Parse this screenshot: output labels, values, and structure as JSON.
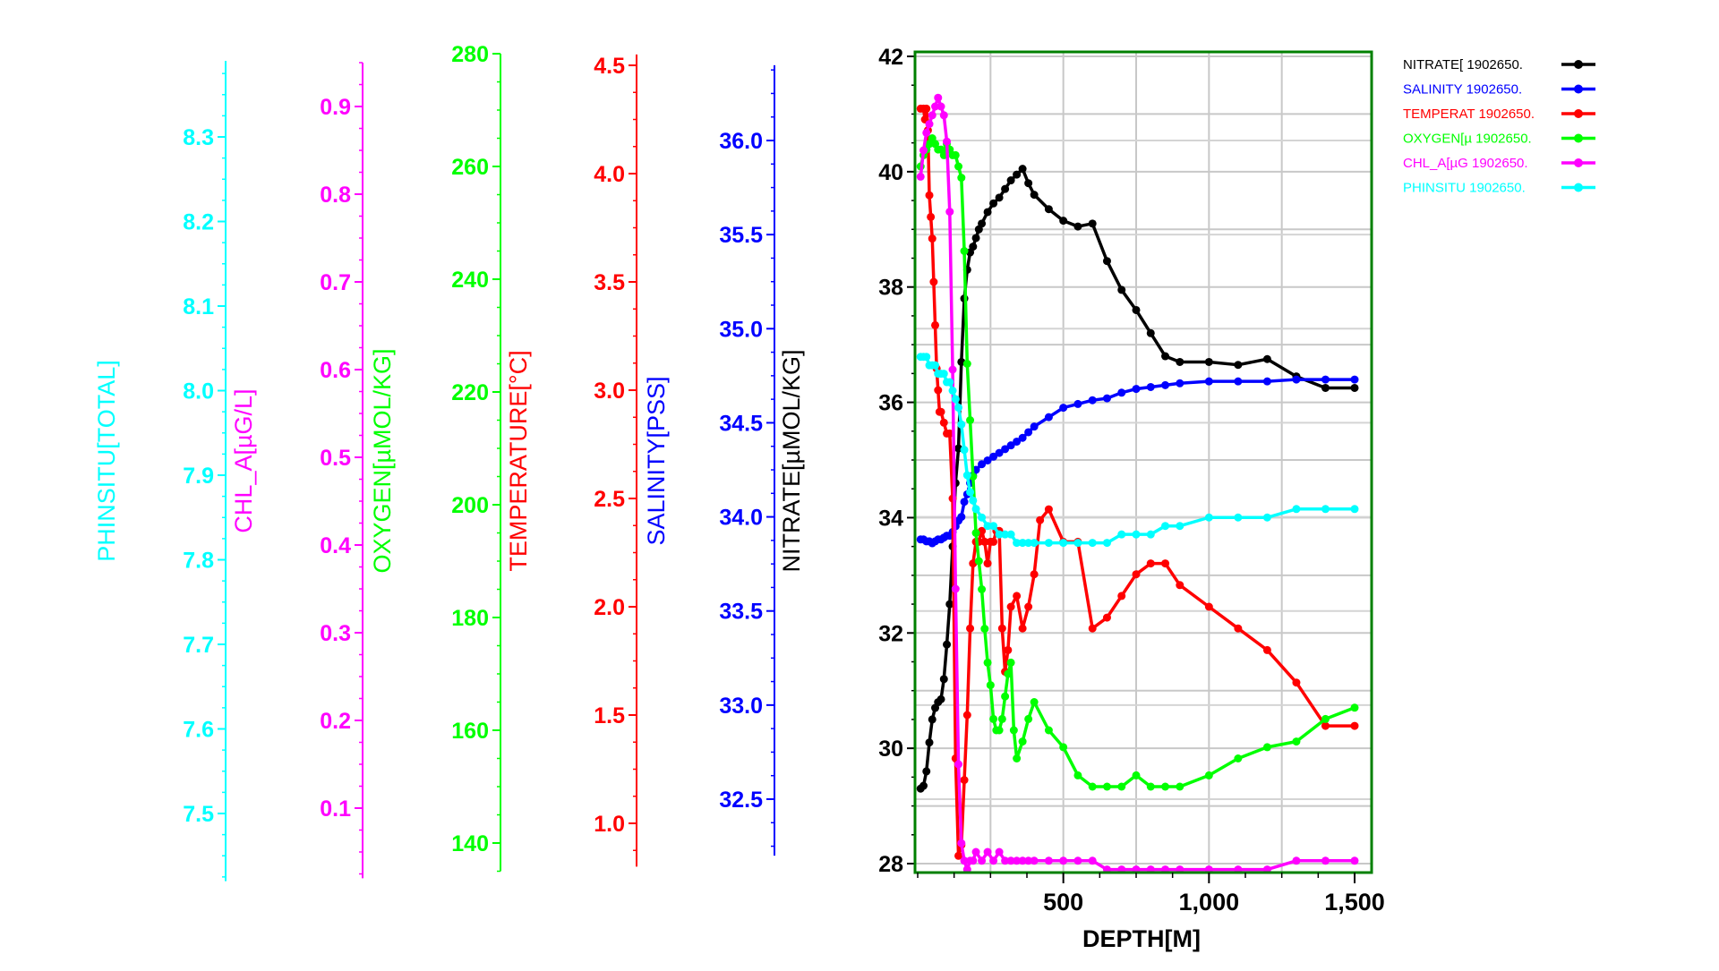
{
  "chart_data": {
    "type": "line",
    "xlabel": "DEPTH[M]",
    "xlim": [
      0,
      1500
    ],
    "x_ticks": [
      500,
      1000,
      1500
    ],
    "x_tick_labels": [
      "500",
      "1,000",
      "1,500"
    ],
    "grid": true,
    "legend_position": "top-right",
    "plot_border_color": "#008000",
    "axes": [
      {
        "key": "phinsitu",
        "label": "PHINSITU[TOTAL]",
        "color": "#00FFFF",
        "range": [
          7.42,
          8.39
        ],
        "ticks": [
          7.5,
          7.6,
          7.7,
          7.8,
          7.9,
          8.0,
          8.1,
          8.2,
          8.3
        ],
        "tick_labels": [
          "7.5",
          "7.6",
          "7.7",
          "7.8",
          "7.9",
          "8.0",
          "8.1",
          "8.2",
          "8.3"
        ]
      },
      {
        "key": "chl",
        "label": "CHL_A[µG/L]",
        "color": "#FF00FF",
        "range": [
          0.02,
          0.95
        ],
        "ticks": [
          0.1,
          0.2,
          0.3,
          0.4,
          0.5,
          0.6,
          0.7,
          0.8,
          0.9
        ],
        "tick_labels": [
          "0.1",
          "0.2",
          "0.3",
          "0.4",
          "0.5",
          "0.6",
          "0.7",
          "0.8",
          "0.9"
        ]
      },
      {
        "key": "oxygen",
        "label": "OXYGEN[µMOL/KG]",
        "color": "#00FF00",
        "range": [
          135,
          280
        ],
        "ticks": [
          140,
          160,
          180,
          200,
          220,
          240,
          260,
          280
        ],
        "tick_labels": [
          "140",
          "160",
          "180",
          "200",
          "220",
          "240",
          "260",
          "280"
        ]
      },
      {
        "key": "temperature",
        "label": "TEMPERATURE[°C]",
        "color": "#FF0000",
        "range": [
          0.8,
          4.55
        ],
        "ticks": [
          1.0,
          1.5,
          2.0,
          2.5,
          3.0,
          3.5,
          4.0,
          4.5
        ],
        "tick_labels": [
          "1.0",
          "1.5",
          "2.0",
          "2.5",
          "3.0",
          "3.5",
          "4.0",
          "4.5"
        ]
      },
      {
        "key": "salinity",
        "label": "SALINITY[PSS]",
        "color": "#0000FF",
        "range": [
          32.2,
          36.4
        ],
        "ticks": [
          32.5,
          33.0,
          33.5,
          34.0,
          34.5,
          35.0,
          35.5,
          36.0
        ],
        "tick_labels": [
          "32.5",
          "33.0",
          "33.5",
          "34.0",
          "34.5",
          "35.0",
          "35.5",
          "36.0"
        ]
      },
      {
        "key": "nitrate",
        "label": "NITRATE[µMOL/KG]",
        "color": "#000000",
        "range": [
          27.8,
          42.3
        ],
        "ticks": [
          28,
          30,
          32,
          34,
          36,
          38,
          40,
          42
        ],
        "tick_labels": [
          "28",
          "30",
          "32",
          "34",
          "36",
          "38",
          "40",
          "42"
        ]
      }
    ],
    "series": [
      {
        "name": "NITRATE[ 1902650.",
        "axis": "nitrate",
        "color": "#000000",
        "x": [
          10,
          20,
          30,
          40,
          50,
          60,
          70,
          80,
          90,
          100,
          110,
          120,
          130,
          140,
          150,
          160,
          170,
          180,
          190,
          200,
          210,
          220,
          240,
          260,
          280,
          300,
          320,
          340,
          360,
          380,
          400,
          450,
          500,
          550,
          600,
          650,
          700,
          750,
          800,
          850,
          900,
          1000,
          1100,
          1200,
          1300,
          1400,
          1500
        ],
        "y": [
          29.3,
          29.35,
          29.6,
          30.1,
          30.5,
          30.7,
          30.8,
          30.85,
          31.2,
          31.8,
          32.5,
          33.5,
          34.6,
          35.2,
          36.7,
          37.8,
          38.3,
          38.6,
          38.7,
          38.85,
          39.0,
          39.1,
          39.3,
          39.45,
          39.55,
          39.7,
          39.85,
          39.95,
          40.05,
          39.8,
          39.6,
          39.35,
          39.15,
          39.05,
          39.1,
          38.45,
          37.95,
          37.6,
          37.2,
          36.8,
          36.7,
          36.7,
          36.65,
          36.75,
          36.45,
          36.25,
          36.25
        ]
      },
      {
        "name": "SALINITY 1902650.",
        "axis": "salinity",
        "color": "#0000FF",
        "x": [
          10,
          20,
          30,
          40,
          50,
          60,
          70,
          80,
          90,
          100,
          110,
          120,
          130,
          140,
          150,
          160,
          170,
          180,
          190,
          200,
          220,
          240,
          260,
          280,
          300,
          320,
          340,
          360,
          380,
          400,
          450,
          500,
          550,
          600,
          650,
          700,
          750,
          800,
          850,
          900,
          1000,
          1100,
          1200,
          1300,
          1400,
          1500
        ],
        "y": [
          33.88,
          33.88,
          33.87,
          33.87,
          33.86,
          33.87,
          33.88,
          33.88,
          33.89,
          33.9,
          33.9,
          33.92,
          33.95,
          33.98,
          34.0,
          34.08,
          34.12,
          34.18,
          34.22,
          34.25,
          34.28,
          34.3,
          34.32,
          34.34,
          34.36,
          34.38,
          34.4,
          34.42,
          34.45,
          34.48,
          34.53,
          34.58,
          34.6,
          34.62,
          34.63,
          34.66,
          34.68,
          34.69,
          34.7,
          34.71,
          34.72,
          34.72,
          34.72,
          34.73,
          34.73,
          34.73
        ]
      },
      {
        "name": "TEMPERAT 1902650.",
        "axis": "temperature",
        "color": "#FF0000",
        "x": [
          10,
          20,
          25,
          30,
          35,
          40,
          45,
          50,
          55,
          60,
          65,
          70,
          75,
          80,
          90,
          100,
          110,
          120,
          130,
          140,
          150,
          160,
          170,
          180,
          190,
          200,
          210,
          220,
          230,
          240,
          250,
          260,
          270,
          280,
          290,
          300,
          310,
          320,
          340,
          360,
          380,
          400,
          420,
          450,
          500,
          550,
          600,
          650,
          700,
          750,
          800,
          850,
          900,
          1000,
          1100,
          1200,
          1300,
          1400,
          1500
        ],
        "y": [
          4.3,
          4.3,
          4.25,
          4.3,
          4.2,
          3.9,
          3.8,
          3.7,
          3.5,
          3.3,
          3.1,
          3.0,
          2.9,
          2.9,
          2.85,
          2.8,
          2.8,
          2.5,
          1.3,
          0.85,
          0.9,
          1.2,
          1.5,
          1.9,
          2.2,
          2.3,
          2.3,
          2.35,
          2.3,
          2.2,
          2.3,
          2.3,
          2.35,
          2.35,
          1.9,
          1.7,
          1.8,
          2.0,
          2.05,
          1.9,
          2.0,
          2.15,
          2.4,
          2.45,
          2.3,
          2.3,
          1.9,
          1.95,
          2.05,
          2.15,
          2.2,
          2.2,
          2.1,
          2.0,
          1.9,
          1.8,
          1.65,
          1.45,
          1.45
        ]
      },
      {
        "name": "OXYGEN[µ 1902650.",
        "axis": "oxygen",
        "color": "#00FF00",
        "x": [
          10,
          20,
          30,
          40,
          50,
          60,
          70,
          80,
          90,
          100,
          110,
          120,
          130,
          140,
          150,
          160,
          170,
          180,
          190,
          200,
          210,
          220,
          230,
          240,
          250,
          260,
          270,
          280,
          290,
          300,
          310,
          320,
          330,
          340,
          360,
          380,
          400,
          450,
          500,
          550,
          600,
          650,
          700,
          750,
          800,
          850,
          900,
          1000,
          1100,
          1200,
          1300,
          1400,
          1500
        ],
        "y": [
          260,
          262,
          263,
          264,
          265,
          264,
          263,
          263,
          262,
          264,
          263,
          262,
          262,
          260,
          258,
          245,
          225,
          215,
          205,
          195,
          190,
          185,
          178,
          172,
          168,
          162,
          160,
          160,
          162,
          166,
          170,
          172,
          160,
          155,
          158,
          162,
          165,
          160,
          157,
          152,
          150,
          150,
          150,
          152,
          150,
          150,
          150,
          152,
          155,
          157,
          158,
          162,
          164
        ]
      },
      {
        "name": "CHL_A[µG 1902650.",
        "axis": "chl",
        "color": "#FF00FF",
        "x": [
          10,
          20,
          30,
          40,
          50,
          60,
          70,
          80,
          90,
          100,
          110,
          120,
          130,
          140,
          150,
          160,
          170,
          180,
          190,
          200,
          220,
          240,
          260,
          280,
          300,
          320,
          340,
          360,
          380,
          400,
          450,
          500,
          550,
          600,
          650,
          700,
          750,
          800,
          850,
          900,
          1000,
          1100,
          1200,
          1300,
          1400,
          1500
        ],
        "y": [
          0.82,
          0.85,
          0.87,
          0.88,
          0.89,
          0.9,
          0.91,
          0.9,
          0.89,
          0.86,
          0.78,
          0.6,
          0.35,
          0.15,
          0.06,
          0.04,
          0.03,
          0.04,
          0.04,
          0.05,
          0.04,
          0.05,
          0.04,
          0.05,
          0.04,
          0.04,
          0.04,
          0.04,
          0.04,
          0.04,
          0.04,
          0.04,
          0.04,
          0.04,
          0.03,
          0.03,
          0.03,
          0.03,
          0.03,
          0.03,
          0.03,
          0.03,
          0.03,
          0.04,
          0.04,
          0.04
        ]
      },
      {
        "name": "PHINSITU 1902650.",
        "axis": "phinsitu",
        "color": "#00FFFF",
        "x": [
          10,
          20,
          30,
          40,
          50,
          60,
          70,
          80,
          90,
          100,
          110,
          120,
          130,
          140,
          150,
          160,
          170,
          180,
          190,
          200,
          220,
          240,
          260,
          280,
          300,
          320,
          340,
          360,
          380,
          400,
          450,
          500,
          550,
          600,
          650,
          700,
          750,
          800,
          850,
          900,
          1000,
          1100,
          1200,
          1300,
          1400,
          1500
        ],
        "y": [
          8.04,
          8.04,
          8.04,
          8.03,
          8.03,
          8.03,
          8.02,
          8.02,
          8.02,
          8.01,
          8.01,
          8.0,
          7.99,
          7.98,
          7.96,
          7.93,
          7.9,
          7.88,
          7.87,
          7.86,
          7.85,
          7.84,
          7.84,
          7.83,
          7.83,
          7.83,
          7.82,
          7.82,
          7.82,
          7.82,
          7.82,
          7.82,
          7.82,
          7.82,
          7.82,
          7.83,
          7.83,
          7.83,
          7.84,
          7.84,
          7.85,
          7.85,
          7.85,
          7.86,
          7.86,
          7.86
        ]
      }
    ]
  }
}
